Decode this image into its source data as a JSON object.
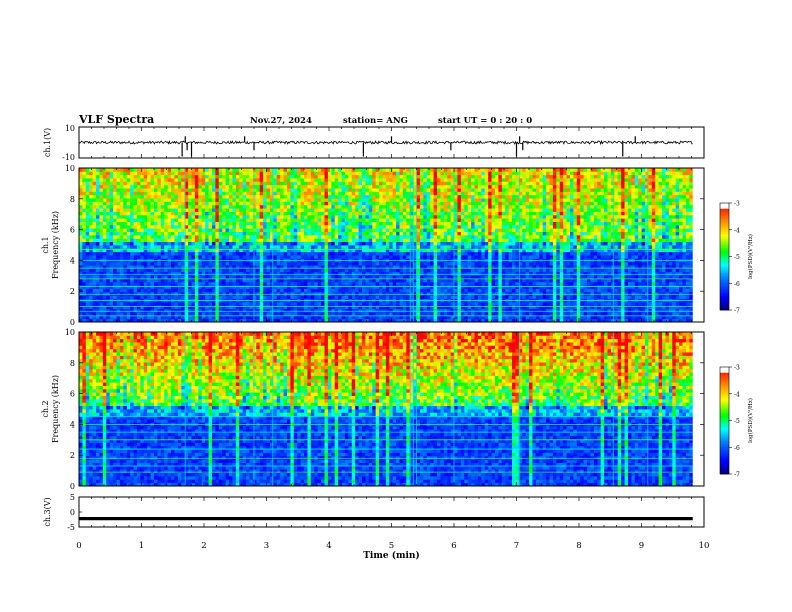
{
  "header": {
    "title": "VLF Spectra",
    "date": "Nov.27, 2024",
    "station": "station= ANG",
    "start": "start  UT =   0  : 20 : 0"
  },
  "chart_data": [
    {
      "type": "line",
      "name": "ch1-waveform",
      "ylabel": "ch.1(V)",
      "ylim": [
        -10,
        10
      ],
      "yticks": [
        "10",
        "-10"
      ],
      "xlim": [
        0,
        10
      ],
      "baseline": 0,
      "noise_band": [
        -1,
        1
      ],
      "spikes_min": [
        1.65,
        1.7,
        1.73,
        1.8,
        2.65,
        2.8,
        4.55,
        5.0,
        5.95,
        7.0,
        7.05,
        7.1,
        8.7,
        8.9
      ],
      "color": "#000000"
    },
    {
      "type": "heatmap",
      "name": "ch1-spectrogram",
      "ylabel": "ch.1\nFrequency (kHz)",
      "ylim": [
        0,
        10
      ],
      "yticks": [
        "0",
        "2",
        "4",
        "6",
        "8",
        "10"
      ],
      "xlim": [
        0,
        10
      ],
      "colorbar_label": "log(PSD)(V²/Hz)",
      "colorbar_ticks": [
        "-3",
        "-4",
        "-5",
        "-6",
        "-7"
      ],
      "colorbar_range": [
        -7,
        -3
      ],
      "level_kHz_high": -4.9,
      "level_kHz_low": -6.6,
      "tone_lines_kHz": [
        0.4,
        0.7,
        1.0,
        1.4,
        1.8,
        2.3,
        2.8,
        3.1,
        3.5,
        4.0,
        4.7
      ]
    },
    {
      "type": "heatmap",
      "name": "ch2-spectrogram",
      "ylabel": "ch.2\nFrequency (kHz)",
      "ylim": [
        0,
        10
      ],
      "yticks": [
        "0",
        "2",
        "4",
        "6",
        "8",
        "10"
      ],
      "xlim": [
        0,
        10
      ],
      "colorbar_label": "log(PSD)(V²/Hz)",
      "colorbar_ticks": [
        "-3",
        "-4",
        "-5",
        "-6",
        "-7"
      ],
      "colorbar_range": [
        -7,
        -3
      ],
      "level_kHz_high": -4.1,
      "level_kHz_low": -6.5,
      "tone_lines_kHz": [
        0.9,
        1.3,
        1.8,
        2.4,
        3.0,
        3.5,
        4.0,
        4.5
      ]
    },
    {
      "type": "line",
      "name": "ch3-waveform",
      "ylabel": "ch.3(V)",
      "ylim": [
        -5,
        5
      ],
      "yticks": [
        "5",
        "0",
        "-5"
      ],
      "xlim": [
        0,
        10
      ],
      "baseline": -2.2,
      "color": "#000000"
    }
  ],
  "xaxis": {
    "label": "Time  (min)",
    "ticks": [
      "0",
      "1",
      "2",
      "3",
      "4",
      "5",
      "6",
      "7",
      "8",
      "9",
      "10"
    ],
    "data_end_min": 9.82
  },
  "colors": {
    "colormap": [
      "#000080",
      "#0000ff",
      "#0080ff",
      "#00ffff",
      "#00ff00",
      "#ffff00",
      "#ff8000",
      "#ff0000",
      "#ffffff"
    ]
  }
}
